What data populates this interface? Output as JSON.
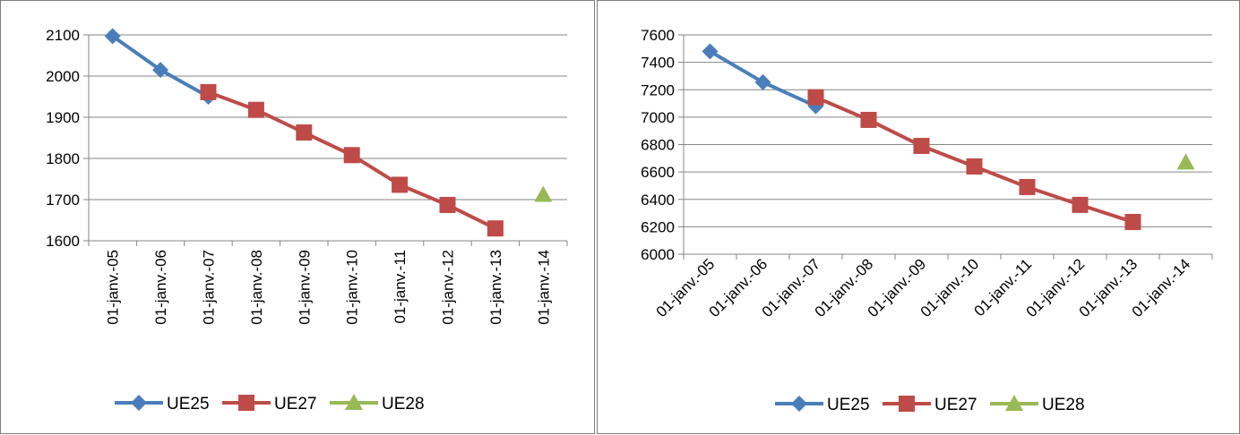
{
  "colors": {
    "UE25": "#4a7ebb",
    "UE27": "#be4b48",
    "UE28": "#98b954",
    "grid": "#868686"
  },
  "chart_data": [
    {
      "type": "line",
      "categories": [
        "01-janv.-05",
        "01-janv.-06",
        "01-janv.-07",
        "01-janv.-08",
        "01-janv.-09",
        "01-janv.-10",
        "01-janv.-11",
        "01-janv.-12",
        "01-janv.-13",
        "01-janv.-14"
      ],
      "ylim": [
        1600,
        2100
      ],
      "yticks": [
        1600,
        1700,
        1800,
        1900,
        2000,
        2100
      ],
      "grid": true,
      "legend_position": "bottom",
      "series": [
        {
          "name": "UE25",
          "marker": "diamond",
          "values": [
            2097,
            2015,
            1950,
            null,
            null,
            null,
            null,
            null,
            null,
            null
          ]
        },
        {
          "name": "UE27",
          "marker": "square",
          "values": [
            null,
            null,
            1961,
            1918,
            1863,
            1808,
            1736,
            1687,
            1630,
            null
          ]
        },
        {
          "name": "UE28",
          "marker": "triangle",
          "values": [
            null,
            null,
            null,
            null,
            null,
            null,
            null,
            null,
            null,
            1712
          ]
        }
      ]
    },
    {
      "type": "line",
      "categories": [
        "01-janv.-05",
        "01-janv.-06",
        "01-janv.-07",
        "01-janv.-08",
        "01-janv.-09",
        "01-janv.-10",
        "01-janv.-11",
        "01-janv.-12",
        "01-janv.-13",
        "01-janv.-14"
      ],
      "ylim": [
        6000,
        7600
      ],
      "yticks": [
        6000,
        6200,
        6400,
        6600,
        6800,
        7000,
        7200,
        7400,
        7600
      ],
      "grid": true,
      "legend_position": "bottom",
      "series": [
        {
          "name": "UE25",
          "marker": "diamond",
          "values": [
            7480,
            7255,
            7080,
            null,
            null,
            null,
            null,
            null,
            null,
            null
          ]
        },
        {
          "name": "UE27",
          "marker": "square",
          "values": [
            null,
            null,
            7145,
            6980,
            6790,
            6640,
            6490,
            6360,
            6235,
            null
          ]
        },
        {
          "name": "UE28",
          "marker": "triangle",
          "values": [
            null,
            null,
            null,
            null,
            null,
            null,
            null,
            null,
            null,
            6670
          ]
        }
      ]
    }
  ]
}
